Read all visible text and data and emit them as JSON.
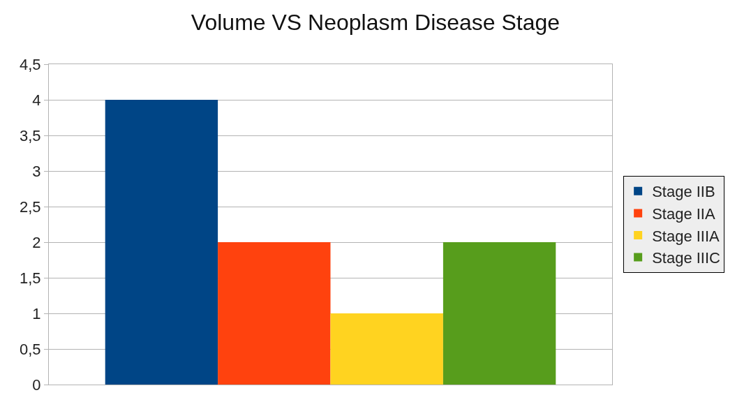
{
  "chart_data": {
    "type": "bar",
    "title": "Volume VS Neoplasm Disease Stage",
    "categories": [
      null
    ],
    "series": [
      {
        "name": "Stage IIB",
        "color": "#004586",
        "values": [
          4
        ]
      },
      {
        "name": "Stage IIA",
        "color": "#ff420e",
        "values": [
          2
        ]
      },
      {
        "name": "Stage IIIA",
        "color": "#ffd320",
        "values": [
          1
        ]
      },
      {
        "name": "Stage IIIC",
        "color": "#579d1c",
        "values": [
          2
        ]
      }
    ],
    "ylim": [
      0,
      4.5
    ],
    "yticks": [
      0,
      {
        "value": 0.5,
        "label": "0,5"
      },
      1,
      {
        "value": 1.5,
        "label": "1,5"
      },
      2,
      {
        "value": 2.5,
        "label": "2,5"
      },
      3,
      {
        "value": 3.5,
        "label": "3,5"
      },
      4,
      {
        "value": 4.5,
        "label": "4,5"
      }
    ],
    "grid": "y",
    "legend": "right"
  }
}
